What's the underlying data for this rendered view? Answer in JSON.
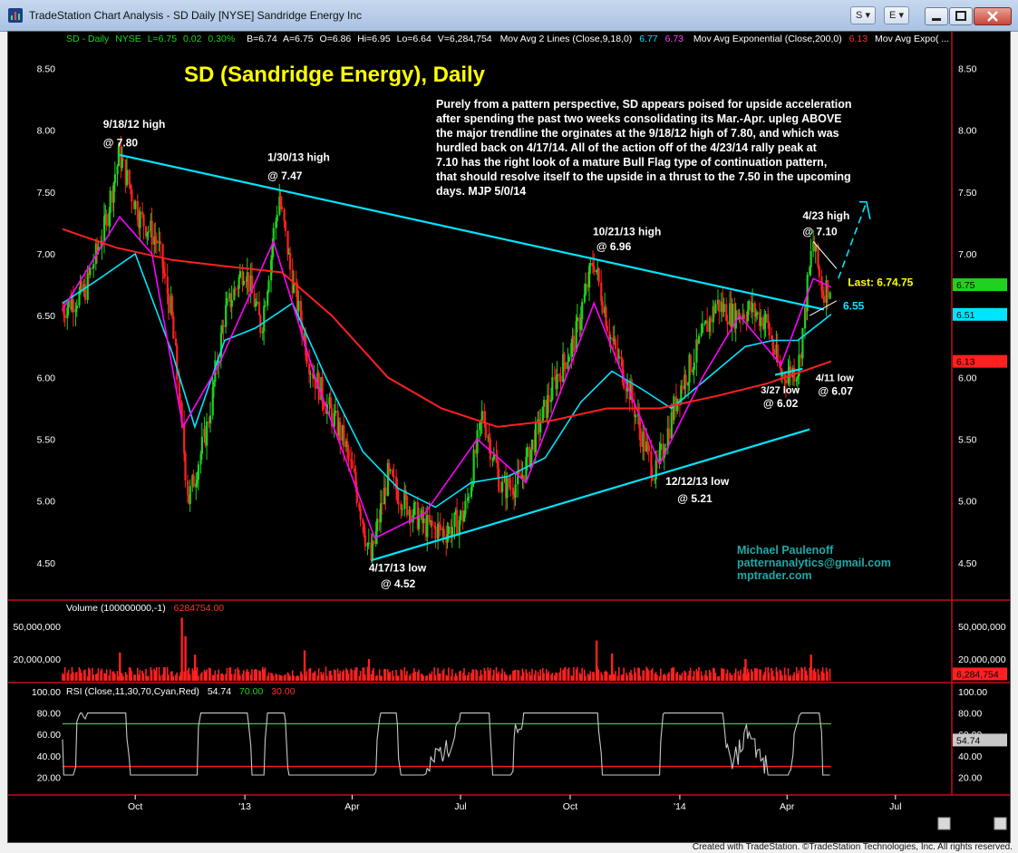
{
  "window": {
    "title": "TradeStation Chart Analysis - SD Daily [NYSE] Sandridge Energy Inc",
    "btn_s": "S",
    "btn_e": "E"
  },
  "status_line": {
    "symbol": "SD - Daily",
    "exchange": "NYSE",
    "last": "L=6.75",
    "chg": "0.02",
    "pct": "0.30%",
    "bid": "B=6.74",
    "ask": "A=6.75",
    "open": "O=6.86",
    "hi": "Hi=6.95",
    "lo": "Lo=6.64",
    "vol": "V=6,284,754",
    "ma2_label": "Mov Avg 2 Lines (Close,9,18,0)",
    "ma2_v1": "6.77",
    "ma2_v2": "6.73",
    "ema_label": "Mov Avg Exponential (Close,200,0)",
    "ema_v": "6.13",
    "ema_more": "Mov Avg Expo( ..."
  },
  "chart_data": [
    {
      "type": "line",
      "panel": "price",
      "title": "SD (Sandridge Energy), Daily",
      "commentary": [
        "Purely from a pattern perspective, SD appears poised for upside acceleration",
        "after spending the past two weeks consolidating its Mar.-Apr. upleg ABOVE",
        "the major trendline the orginates at the 9/18/12 high of 7.80, and which was",
        "hurdled back on 4/17/14. All of the action off of the 4/23/14 rally peak at",
        "7.10 has the right look of a mature Bull Flag type of continuation pattern,",
        "that should resolve itself to the upside in a thrust to the 7.50 in the upcoming",
        "days. MJP  5/0/14"
      ],
      "y_ticks": [
        "8.50",
        "8.00",
        "7.50",
        "7.00",
        "6.50",
        "6.00",
        "5.50",
        "5.00",
        "4.50"
      ],
      "ylim": [
        4.25,
        8.65
      ],
      "x_ticks": [
        "Oct",
        "'13",
        "Apr",
        "Jul",
        "Oct",
        "'14",
        "Apr",
        "Jul"
      ],
      "x_dates": [
        "2012-10-01",
        "2013-01-01",
        "2013-04-01",
        "2013-07-01",
        "2013-10-01",
        "2014-01-01",
        "2014-04-01",
        "2014-07-01"
      ],
      "xlim": [
        "2012-08-01",
        "2014-08-15"
      ],
      "series": [
        {
          "name": "SD",
          "color": "#ff2020",
          "x": [
            "2012-08-01",
            "2012-08-20",
            "2012-09-05",
            "2012-09-18",
            "2012-10-05",
            "2012-10-20",
            "2012-11-01",
            "2012-11-15",
            "2012-12-01",
            "2012-12-15",
            "2013-01-01",
            "2013-01-15",
            "2013-01-30",
            "2013-02-10",
            "2013-02-25",
            "2013-03-10",
            "2013-03-25",
            "2013-04-05",
            "2013-04-17",
            "2013-05-01",
            "2013-05-15",
            "2013-06-01",
            "2013-06-20",
            "2013-07-05",
            "2013-07-20",
            "2013-08-05",
            "2013-08-20",
            "2013-09-05",
            "2013-09-20",
            "2013-10-05",
            "2013-10-21",
            "2013-11-05",
            "2013-11-20",
            "2013-12-01",
            "2013-12-12",
            "2014-01-01",
            "2014-01-15",
            "2014-02-01",
            "2014-02-15",
            "2014-03-01",
            "2014-03-15",
            "2014-03-27",
            "2014-04-11",
            "2014-04-23",
            "2014-05-01",
            "2014-05-08"
          ],
          "y": [
            6.55,
            6.7,
            7.2,
            7.8,
            7.3,
            7.1,
            6.5,
            5.0,
            5.6,
            6.5,
            6.9,
            6.4,
            7.47,
            6.8,
            6.1,
            5.8,
            5.5,
            5.1,
            4.52,
            5.2,
            5.0,
            4.8,
            4.75,
            4.9,
            5.7,
            5.1,
            5.15,
            5.6,
            6.0,
            6.3,
            6.96,
            6.3,
            5.9,
            5.5,
            5.21,
            5.9,
            6.2,
            6.6,
            6.5,
            6.55,
            6.45,
            6.02,
            6.07,
            7.1,
            6.7,
            6.75
          ]
        },
        {
          "name": "",
          "color": "#00e5ff",
          "x": [
            "2012-08-01",
            "2012-09-01",
            "2012-10-01",
            "2012-11-01",
            "2012-11-20",
            "2012-12-15",
            "2013-01-10",
            "2013-02-10",
            "2013-03-10",
            "2013-04-10",
            "2013-05-10",
            "2013-06-10",
            "2013-07-10",
            "2013-08-10",
            "2013-09-10",
            "2013-10-10",
            "2013-11-05",
            "2013-12-01",
            "2013-12-25",
            "2014-01-25",
            "2014-02-25",
            "2014-03-20",
            "2014-04-10",
            "2014-05-08"
          ],
          "y": [
            6.6,
            6.8,
            7.0,
            6.2,
            5.6,
            6.3,
            6.4,
            6.6,
            6.0,
            5.4,
            5.1,
            4.95,
            5.15,
            5.2,
            5.35,
            5.8,
            6.05,
            5.9,
            5.75,
            6.0,
            6.25,
            6.3,
            6.3,
            6.51
          ]
        },
        {
          "name": "",
          "color": "#ff00ff",
          "x": [
            "2012-08-01",
            "2012-09-18",
            "2012-10-15",
            "2012-11-10",
            "2012-12-10",
            "2013-01-25",
            "2013-03-01",
            "2013-04-20",
            "2013-06-01",
            "2013-07-15",
            "2013-08-25",
            "2013-10-21",
            "2013-11-15",
            "2013-12-15",
            "2014-01-20",
            "2014-02-20",
            "2014-03-27",
            "2014-04-23",
            "2014-05-08"
          ],
          "y": [
            6.55,
            7.3,
            7.0,
            5.6,
            6.1,
            7.1,
            6.0,
            4.7,
            4.9,
            5.5,
            5.15,
            6.6,
            6.0,
            5.3,
            6.0,
            6.5,
            6.1,
            6.8,
            6.73
          ]
        },
        {
          "name": "",
          "color": "#ff2020",
          "x": [
            "2012-08-01",
            "2012-09-15",
            "2012-11-01",
            "2012-12-15",
            "2013-02-01",
            "2013-03-15",
            "2013-05-01",
            "2013-06-15",
            "2013-08-01",
            "2013-09-15",
            "2013-11-01",
            "2013-12-15",
            "2014-02-01",
            "2014-03-15",
            "2014-05-08"
          ],
          "y": [
            7.2,
            7.05,
            6.95,
            6.9,
            6.85,
            6.5,
            6.0,
            5.75,
            5.6,
            5.65,
            5.75,
            5.75,
            5.85,
            5.95,
            6.13
          ]
        },
        {
          "name": "",
          "color": "#00e5ff",
          "x": [
            "2012-09-18",
            "2014-05-02"
          ],
          "y": [
            7.8,
            6.55
          ]
        },
        {
          "name": "",
          "color": "#00e5ff",
          "x": [
            "2013-04-17",
            "2014-04-20"
          ],
          "y": [
            4.52,
            5.58
          ]
        },
        {
          "name": "",
          "color": "#00e5ff",
          "x": [
            "2014-03-22",
            "2014-04-14"
          ],
          "y": [
            6.02,
            6.07
          ]
        }
      ],
      "annotations": [
        {
          "text": "9/18/12 high",
          "x": "2012-09-04",
          "y": 8.02
        },
        {
          "text": "@ 7.80",
          "x": "2012-09-04",
          "y": 7.87
        },
        {
          "text": "1/30/13 high",
          "x": "2013-01-20",
          "y": 7.75
        },
        {
          "text": "@ 7.47",
          "x": "2013-01-20",
          "y": 7.6
        },
        {
          "text": "10/21/13 high",
          "x": "2013-10-20",
          "y": 7.15
        },
        {
          "text": "@ 6.96",
          "x": "2013-10-23",
          "y": 7.03
        },
        {
          "text": "4/23 high",
          "x": "2014-04-14",
          "y": 7.28
        },
        {
          "text": "@ 7.10",
          "x": "2014-04-14",
          "y": 7.15
        },
        {
          "text": "Last: 6.74.75",
          "x": "2014-05-22",
          "y": 6.74
        },
        {
          "text": "6.55",
          "x": "2014-05-18",
          "y": 6.55
        },
        {
          "text": "4/11 low",
          "x": "2014-04-25",
          "y": 5.97
        },
        {
          "text": "@ 6.07",
          "x": "2014-04-27",
          "y": 5.86
        },
        {
          "text": "3/27 low",
          "x": "2014-03-10",
          "y": 5.87
        },
        {
          "text": "@ 6.02",
          "x": "2014-03-12",
          "y": 5.76
        },
        {
          "text": "12/12/13 low",
          "x": "2013-12-20",
          "y": 5.13
        },
        {
          "text": "@ 5.21",
          "x": "2013-12-30",
          "y": 4.99
        },
        {
          "text": "4/17/13 low",
          "x": "2013-04-15",
          "y": 4.43
        },
        {
          "text": "@ 4.52",
          "x": "2013-04-25",
          "y": 4.3
        }
      ],
      "price_markers": [
        {
          "label": "6.75",
          "value": 6.75,
          "color": "#1fd21f"
        },
        {
          "label": "6.51",
          "value": 6.51,
          "color": "#00e5ff"
        },
        {
          "label": "6.13",
          "value": 6.13,
          "color": "#ff2020"
        }
      ],
      "signature": [
        "Michael Paulenoff",
        "patternanalytics@gmail.com",
        "mptrader.com"
      ]
    },
    {
      "type": "bar",
      "panel": "volume",
      "label": "Volume (100000000,-1)",
      "last": "6284754.00",
      "y_ticks": [
        "50,000,000",
        "20,000,000"
      ],
      "y_tick_values": [
        50000000,
        20000000
      ],
      "ylim": [
        0,
        70000000
      ],
      "marker": {
        "label": "6,284,754",
        "value": 6284754
      },
      "spikes": [
        {
          "x": "2012-09-18",
          "value": 26000000
        },
        {
          "x": "2012-11-09",
          "value": 58000000
        },
        {
          "x": "2012-11-12",
          "value": 41000000
        },
        {
          "x": "2012-11-20",
          "value": 24000000
        },
        {
          "x": "2013-02-20",
          "value": 28000000
        },
        {
          "x": "2013-04-15",
          "value": 20000000
        },
        {
          "x": "2013-10-23",
          "value": 37000000
        },
        {
          "x": "2013-11-05",
          "value": 25000000
        },
        {
          "x": "2014-02-25",
          "value": 20000000
        },
        {
          "x": "2014-04-21",
          "value": 24000000
        }
      ]
    },
    {
      "type": "line",
      "panel": "rsi",
      "label": "RSI (Close,11,30,70,Cyan,Red)",
      "v1": "54.74",
      "v2": "70.00",
      "v3": "30.00",
      "y_ticks": [
        "100.00",
        "80.00",
        "60.00",
        "40.00",
        "20.00"
      ],
      "y_tick_values": [
        100,
        80,
        60,
        40,
        20
      ],
      "ylim": [
        5,
        106
      ],
      "levels": [
        70,
        30
      ],
      "marker": {
        "label": "54.74",
        "value": 54.74
      }
    }
  ],
  "footer": "Created with TradeStation. ©TradeStation Technologies, Inc. All rights reserved."
}
